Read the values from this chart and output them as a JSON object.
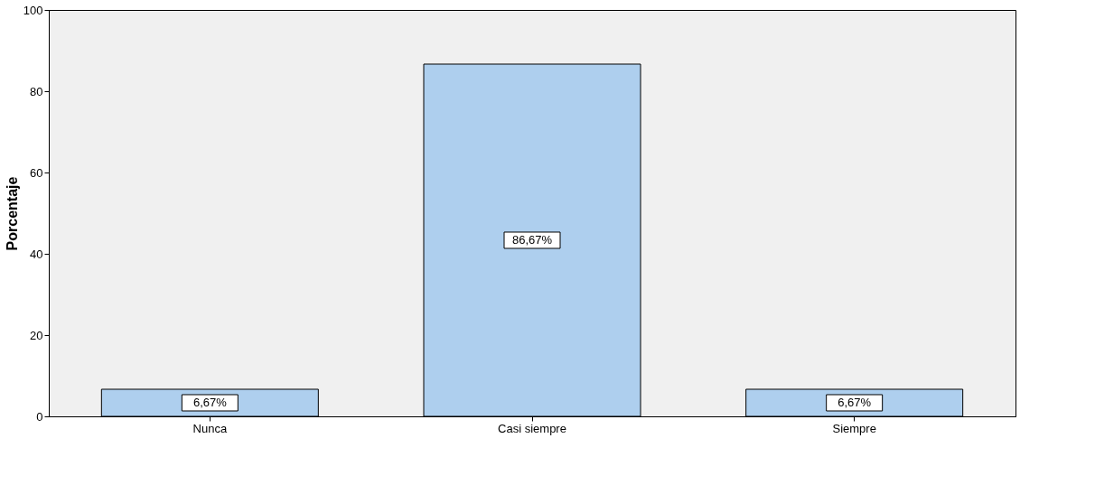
{
  "chart_data": {
    "type": "bar",
    "ylabel": "Porcentaje",
    "categories": [
      "Nunca",
      "Casi siempre",
      "Siempre"
    ],
    "values": [
      6.67,
      86.67,
      6.67
    ],
    "color": "#aecfee",
    "value_labels": [
      "6,67%",
      "86,67%",
      "6,67%"
    ],
    "ylim": [
      0,
      100
    ],
    "yticks": [
      0,
      20,
      40,
      60,
      80,
      100
    ],
    "grid": false
  }
}
